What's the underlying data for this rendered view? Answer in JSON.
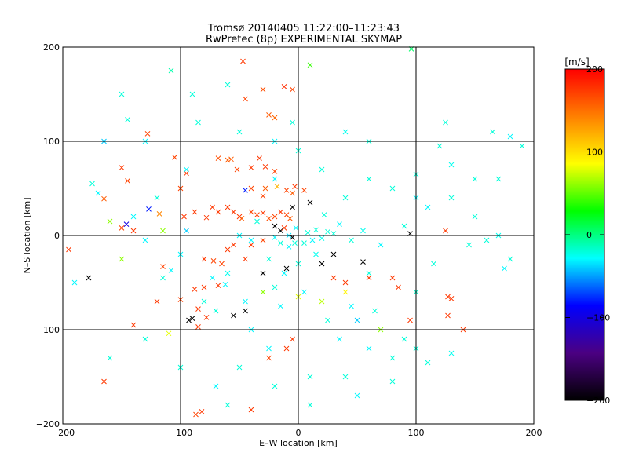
{
  "chart_data": {
    "type": "scatter",
    "title": "Tromsø 20140405 11:22:00–11:23:43",
    "subtitle": "RwPretec (8p) EXPERIMENTAL SKYMAP",
    "xlabel": "E–W location [km]",
    "ylabel": "N–S location [km]",
    "xlim": [
      -200,
      200
    ],
    "ylim": [
      -200,
      200
    ],
    "xticks": [
      -200,
      -100,
      0,
      100,
      200
    ],
    "yticks": [
      -200,
      -100,
      0,
      100,
      200
    ],
    "grid": true,
    "marker": "x",
    "colorbar": {
      "label": "[m/s]",
      "range": [
        -200,
        200
      ],
      "ticks": [
        200,
        100,
        0,
        -100,
        -200
      ],
      "colors": [
        "#000000",
        "#4b0082",
        "#0000ff",
        "#00ffff",
        "#00ff00",
        "#ffff00",
        "#ff8000",
        "#ff0000"
      ]
    },
    "points": [
      [
        -108,
        175,
        -10
      ],
      [
        96,
        198,
        5
      ],
      [
        10,
        181,
        40
      ],
      [
        -47,
        185,
        175
      ],
      [
        -45,
        145,
        170
      ],
      [
        -30,
        155,
        165
      ],
      [
        -12,
        158,
        180
      ],
      [
        -5,
        155,
        170
      ],
      [
        -25,
        128,
        160
      ],
      [
        -20,
        125,
        155
      ],
      [
        -145,
        123,
        -20
      ],
      [
        -128,
        108,
        170
      ],
      [
        -165,
        100,
        -40
      ],
      [
        -105,
        83,
        170
      ],
      [
        -68,
        82,
        165
      ],
      [
        -60,
        80,
        160
      ],
      [
        -57,
        81,
        160
      ],
      [
        -52,
        70,
        170
      ],
      [
        -40,
        72,
        175
      ],
      [
        -33,
        82,
        175
      ],
      [
        -28,
        73,
        175
      ],
      [
        -20,
        68,
        170
      ],
      [
        -95,
        66,
        175
      ],
      [
        -100,
        50,
        170
      ],
      [
        -145,
        58,
        170
      ],
      [
        -150,
        72,
        175
      ],
      [
        -175,
        55,
        -20
      ],
      [
        -170,
        45,
        -30
      ],
      [
        -165,
        39,
        160
      ],
      [
        -150,
        8,
        170
      ],
      [
        -140,
        5,
        175
      ],
      [
        -146,
        12,
        -100
      ],
      [
        -127,
        28,
        -80
      ],
      [
        -118,
        23,
        140
      ],
      [
        -97,
        20,
        175
      ],
      [
        -88,
        25,
        175
      ],
      [
        -78,
        19,
        175
      ],
      [
        -73,
        30,
        175
      ],
      [
        -68,
        25,
        175
      ],
      [
        -60,
        30,
        175
      ],
      [
        -55,
        25,
        175
      ],
      [
        -50,
        20,
        175
      ],
      [
        -48,
        18,
        160
      ],
      [
        -40,
        25,
        170
      ],
      [
        -35,
        22,
        170
      ],
      [
        -30,
        24,
        175
      ],
      [
        -25,
        18,
        165
      ],
      [
        -20,
        20,
        170
      ],
      [
        -15,
        25,
        175
      ],
      [
        -10,
        22,
        170
      ],
      [
        -7,
        18,
        160
      ],
      [
        -45,
        48,
        -80
      ],
      [
        -40,
        50,
        170
      ],
      [
        -30,
        42,
        170
      ],
      [
        -28,
        50,
        160
      ],
      [
        -18,
        52,
        120
      ],
      [
        -10,
        48,
        170
      ],
      [
        -5,
        45,
        160
      ],
      [
        -3,
        52,
        175
      ],
      [
        5,
        48,
        170
      ],
      [
        -195,
        -15,
        175
      ],
      [
        -115,
        -33,
        170
      ],
      [
        -108,
        -37,
        -30
      ],
      [
        -88,
        -57,
        175
      ],
      [
        -80,
        -55,
        175
      ],
      [
        -68,
        -53,
        175
      ],
      [
        -100,
        -68,
        170
      ],
      [
        -85,
        -78,
        175
      ],
      [
        -78,
        -87,
        175
      ],
      [
        -120,
        -70,
        175
      ],
      [
        -93,
        -90,
        -200
      ],
      [
        -85,
        -97,
        175
      ],
      [
        -140,
        -95,
        175
      ],
      [
        -165,
        -155,
        175
      ],
      [
        -110,
        -104,
        80
      ],
      [
        -178,
        -45,
        -200
      ],
      [
        -87,
        -190,
        170
      ],
      [
        -82,
        -187,
        175
      ],
      [
        -40,
        -185,
        175
      ],
      [
        -25,
        -130,
        170
      ],
      [
        -10,
        -120,
        175
      ],
      [
        -5,
        -110,
        175
      ],
      [
        -45,
        -25,
        175
      ],
      [
        -40,
        -10,
        175
      ],
      [
        -30,
        -5,
        170
      ],
      [
        -80,
        -25,
        175
      ],
      [
        -72,
        -27,
        170
      ],
      [
        -65,
        -30,
        170
      ],
      [
        -60,
        -15,
        175
      ],
      [
        -55,
        -10,
        175
      ],
      [
        -15,
        5,
        -200
      ],
      [
        -12,
        8,
        175
      ],
      [
        10,
        35,
        -200
      ],
      [
        -5,
        30,
        -200
      ],
      [
        -20,
        10,
        -200
      ],
      [
        -10,
        -35,
        -200
      ],
      [
        -30,
        -40,
        -200
      ],
      [
        -90,
        -88,
        -200
      ],
      [
        -55,
        -85,
        -200
      ],
      [
        -45,
        -80,
        -200
      ],
      [
        -5,
        -2,
        -200
      ],
      [
        20,
        -30,
        -200
      ],
      [
        30,
        -20,
        -200
      ],
      [
        55,
        -28,
        -200
      ],
      [
        95,
        2,
        -200
      ],
      [
        125,
        5,
        175
      ],
      [
        30,
        -45,
        175
      ],
      [
        40,
        -50,
        175
      ],
      [
        60,
        -45,
        175
      ],
      [
        80,
        -45,
        175
      ],
      [
        85,
        -55,
        175
      ],
      [
        100,
        -60,
        175
      ],
      [
        127,
        -65,
        175
      ],
      [
        130,
        -67,
        175
      ],
      [
        127,
        -85,
        175
      ],
      [
        95,
        -90,
        175
      ],
      [
        140,
        -100,
        175
      ],
      [
        -130,
        -5,
        -30
      ],
      [
        -115,
        -45,
        -20
      ],
      [
        -95,
        5,
        -40
      ],
      [
        -160,
        15,
        60
      ],
      [
        -150,
        -25,
        60
      ],
      [
        -115,
        5,
        60
      ],
      [
        -30,
        -60,
        60
      ],
      [
        0,
        -65,
        80
      ],
      [
        20,
        -70,
        70
      ],
      [
        40,
        -60,
        90
      ],
      [
        70,
        -100,
        60
      ],
      [
        50,
        -90,
        -40
      ],
      [
        35,
        -110,
        -30
      ],
      [
        -15,
        -75,
        -30
      ],
      [
        -20,
        -55,
        -20
      ],
      [
        -45,
        -70,
        -30
      ],
      [
        -62,
        -52,
        -30
      ],
      [
        -73,
        -45,
        -30
      ],
      [
        -8,
        -12,
        -30
      ],
      [
        5,
        -8,
        -20
      ],
      [
        12,
        -5,
        -30
      ],
      [
        20,
        -3,
        -25
      ],
      [
        8,
        3,
        -20
      ],
      [
        15,
        6,
        -20
      ],
      [
        -2,
        8,
        -30
      ],
      [
        -8,
        0,
        -35
      ],
      [
        -3,
        -8,
        -20
      ],
      [
        25,
        4,
        -20
      ],
      [
        30,
        2,
        -20
      ],
      [
        -20,
        -2,
        -30
      ],
      [
        -15,
        -8,
        -20
      ],
      [
        110,
        -135,
        -20
      ],
      [
        80,
        -130,
        -20
      ],
      [
        100,
        -120,
        -20
      ],
      [
        60,
        -120,
        -30
      ],
      [
        40,
        -150,
        -20
      ],
      [
        130,
        -125,
        -25
      ],
      [
        100,
        -60,
        -20
      ],
      [
        115,
        -30,
        -20
      ],
      [
        145,
        -10,
        -20
      ],
      [
        160,
        -5,
        -20
      ],
      [
        180,
        -25,
        -20
      ],
      [
        175,
        -35,
        -30
      ],
      [
        180,
        105,
        -30
      ],
      [
        190,
        95,
        -20
      ],
      [
        165,
        110,
        -20
      ],
      [
        125,
        120,
        -20
      ],
      [
        120,
        95,
        -20
      ],
      [
        130,
        75,
        -25
      ],
      [
        150,
        60,
        -20
      ],
      [
        170,
        60,
        -20
      ],
      [
        100,
        65,
        -20
      ],
      [
        60,
        100,
        -20
      ],
      [
        40,
        110,
        -25
      ],
      [
        -5,
        120,
        -20
      ],
      [
        -20,
        100,
        -30
      ],
      [
        -50,
        110,
        -20
      ],
      [
        -95,
        70,
        -30
      ],
      [
        -85,
        120,
        -20
      ],
      [
        -130,
        100,
        -30
      ],
      [
        -60,
        160,
        -20
      ],
      [
        -90,
        150,
        -20
      ],
      [
        -150,
        150,
        -20
      ],
      [
        -190,
        -50,
        -30
      ],
      [
        -160,
        -130,
        -20
      ],
      [
        -130,
        -110,
        -20
      ],
      [
        -100,
        -140,
        -20
      ],
      [
        -70,
        -160,
        -30
      ],
      [
        -50,
        -140,
        -20
      ],
      [
        -20,
        -160,
        -20
      ],
      [
        10,
        -180,
        -20
      ],
      [
        50,
        -170,
        -30
      ],
      [
        80,
        -155,
        -20
      ],
      [
        -60,
        -180,
        -20
      ],
      [
        -40,
        -100,
        -30
      ],
      [
        10,
        -150,
        -20
      ],
      [
        90,
        -110,
        -20
      ],
      [
        60,
        -40,
        -20
      ],
      [
        70,
        -10,
        -30
      ],
      [
        90,
        10,
        -20
      ],
      [
        110,
        30,
        -30
      ],
      [
        130,
        40,
        -20
      ],
      [
        150,
        20,
        -20
      ],
      [
        170,
        0,
        -25
      ],
      [
        40,
        40,
        -20
      ],
      [
        60,
        60,
        -20
      ],
      [
        80,
        50,
        -20
      ],
      [
        100,
        40,
        -30
      ],
      [
        20,
        70,
        -20
      ],
      [
        0,
        90,
        -20
      ],
      [
        -20,
        60,
        -30
      ],
      [
        -40,
        -5,
        -30
      ],
      [
        -60,
        -40,
        -25
      ],
      [
        -80,
        -70,
        -20
      ],
      [
        -100,
        -20,
        -30
      ],
      [
        -120,
        40,
        -20
      ],
      [
        -140,
        20,
        -30
      ],
      [
        -70,
        -80,
        -20
      ],
      [
        -25,
        -120,
        -30
      ],
      [
        5,
        -60,
        -30
      ],
      [
        25,
        -90,
        -20
      ],
      [
        45,
        -75,
        -30
      ],
      [
        65,
        -80,
        -20
      ],
      [
        -35,
        15,
        -20
      ],
      [
        -50,
        0,
        -30
      ],
      [
        22,
        22,
        -20
      ],
      [
        35,
        12,
        -30
      ],
      [
        45,
        -5,
        -20
      ],
      [
        55,
        5,
        -25
      ],
      [
        -12,
        -40,
        -30
      ],
      [
        0,
        -30,
        -20
      ],
      [
        15,
        -20,
        -25
      ],
      [
        -25,
        -25,
        -20
      ]
    ]
  }
}
